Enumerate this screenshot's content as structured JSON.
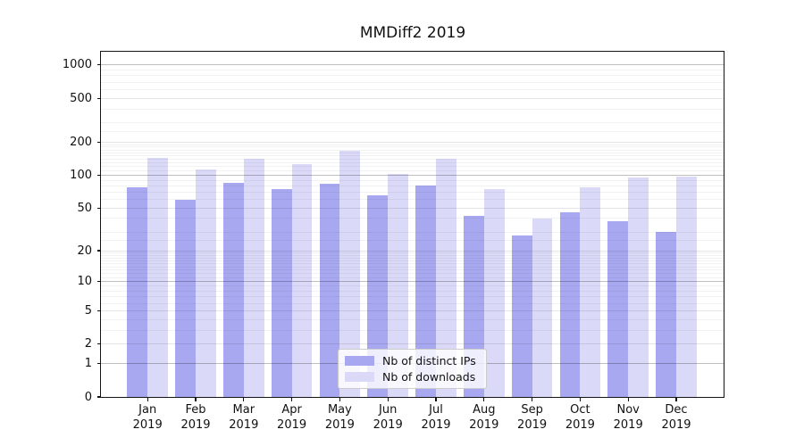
{
  "title": "MMDiff2 2019",
  "chart_data": {
    "type": "bar",
    "title": "MMDiff2 2019",
    "categories": [
      "Jan",
      "Feb",
      "Mar",
      "Apr",
      "May",
      "Jun",
      "Jul",
      "Aug",
      "Sep",
      "Oct",
      "Nov",
      "Dec"
    ],
    "year": "2019",
    "series": [
      {
        "name": "Nb of distinct IPs",
        "color": "#a8a8f1",
        "values": [
          78,
          60,
          85,
          74,
          84,
          65,
          80,
          42,
          28,
          46,
          38,
          30
        ]
      },
      {
        "name": "Nb of downloads",
        "color": "#dadaf8",
        "values": [
          143,
          113,
          140,
          125,
          166,
          102,
          141,
          74,
          40,
          77,
          95,
          97
        ]
      }
    ],
    "xlabel": "",
    "ylabel": "",
    "yscale": "log1p",
    "ylim": [
      0,
      1330
    ],
    "yticks": [
      0,
      1,
      2,
      5,
      10,
      20,
      50,
      100,
      200,
      500,
      1000
    ],
    "decade_ticks": [
      1,
      10,
      100,
      1000
    ],
    "minor_yticks": [
      3,
      4,
      6,
      7,
      8,
      9,
      11,
      12,
      13,
      14,
      15,
      16,
      17,
      18,
      19,
      25,
      30,
      40,
      60,
      70,
      80,
      90,
      110,
      120,
      130,
      140,
      150,
      160,
      170,
      180,
      190,
      250,
      300,
      400,
      600,
      700,
      800,
      900
    ],
    "grid": true,
    "legend_position": "lower center"
  },
  "colors": {
    "grid_minor": "rgba(0,0,0,0.05)",
    "grid_major": "rgba(0,0,0,0.10)",
    "grid_decade": "rgba(0,0,0,0.25)",
    "spine": "#141414",
    "text": "#111111",
    "legend_border": "#cccccc",
    "legend_bg": "rgba(255,255,255,0.8)"
  }
}
